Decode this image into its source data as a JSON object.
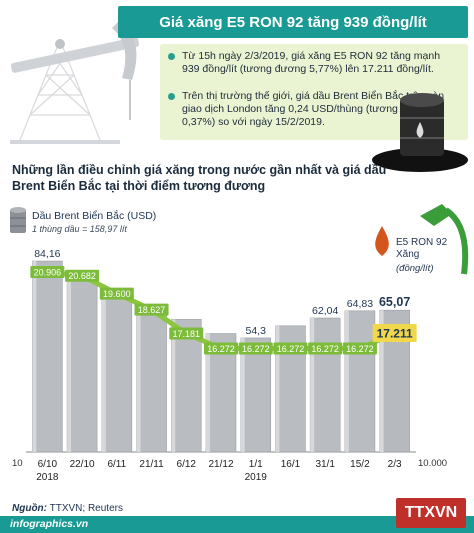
{
  "title": "Giá xăng E5 RON 92 tăng 939 đồng/lít",
  "info": [
    "Từ 15h ngày 2/3/2019, giá xăng E5 RON 92 tăng mạnh 939 đồng/lít (tương đương 5,77%) lên 17.211 đồng/lít.",
    "Trên thị trường thế giới, giá dầu Brent Biển Bắc trên sàn giao dịch London tăng 0,24 USD/thùng (tương đương 0,37%) so với ngày 15/2/2019."
  ],
  "headline": "Những lần điều chỉnh giá xăng trong nước gần nhất và giá dầu Brent Biển Bắc tại thời điểm tương đương",
  "legend": {
    "brent_label": "Dầu Brent Biển Bắc (USD)",
    "brent_note": "1 thùng dầu = 158,97 lít",
    "e5_label_1": "E5 RON 92",
    "e5_label_2": "Xăng",
    "e5_unit": "(đồng/lít)"
  },
  "axis": {
    "left_min": "10",
    "right_min": "10.000"
  },
  "years": [
    "2018",
    "2019"
  ],
  "source_label": "Nguồn:",
  "source_value": "TTXVN; Reuters",
  "site": "infographics.vn",
  "logo": "TTXVN",
  "colors": {
    "teal": "#1a9a94",
    "line": "#8cc63f",
    "bar_fill": "#b9bcc1",
    "label_fill": "#7dbb3a",
    "highlight": "#f1d84b",
    "navy": "#1f3552"
  },
  "chart_data": {
    "type": "bar",
    "categories": [
      "6/10",
      "22/10",
      "6/11",
      "21/11",
      "6/12",
      "21/12",
      "1/1",
      "16/1",
      "31/1",
      "15/2",
      "2/3"
    ],
    "series": [
      {
        "name": "Dầu Brent Biển Bắc (USD)",
        "type": "bar",
        "values": [
          84.16,
          80.0,
          71.5,
          64.5,
          61.5,
          56.0,
          54.3,
          59.0,
          62.04,
          64.83,
          65.07
        ],
        "labels": [
          "84,16",
          "",
          "",
          "",
          "",
          "",
          "54,3",
          "",
          "62,04",
          "64,83",
          "65,07"
        ]
      },
      {
        "name": "E5 RON 92",
        "type": "line",
        "values": [
          20906,
          20682,
          19600,
          18627,
          17181,
          16272,
          16272,
          16272,
          16272,
          16272,
          17211
        ],
        "labels": [
          "20.906",
          "20.682",
          "19.600",
          "18.627",
          "17.181",
          "16.272",
          "16.272",
          "16.272",
          "16.272",
          "16.272",
          "17.211"
        ]
      }
    ],
    "ylim_left": [
      10,
      90
    ],
    "ylim_right": [
      10000,
      22000
    ]
  }
}
